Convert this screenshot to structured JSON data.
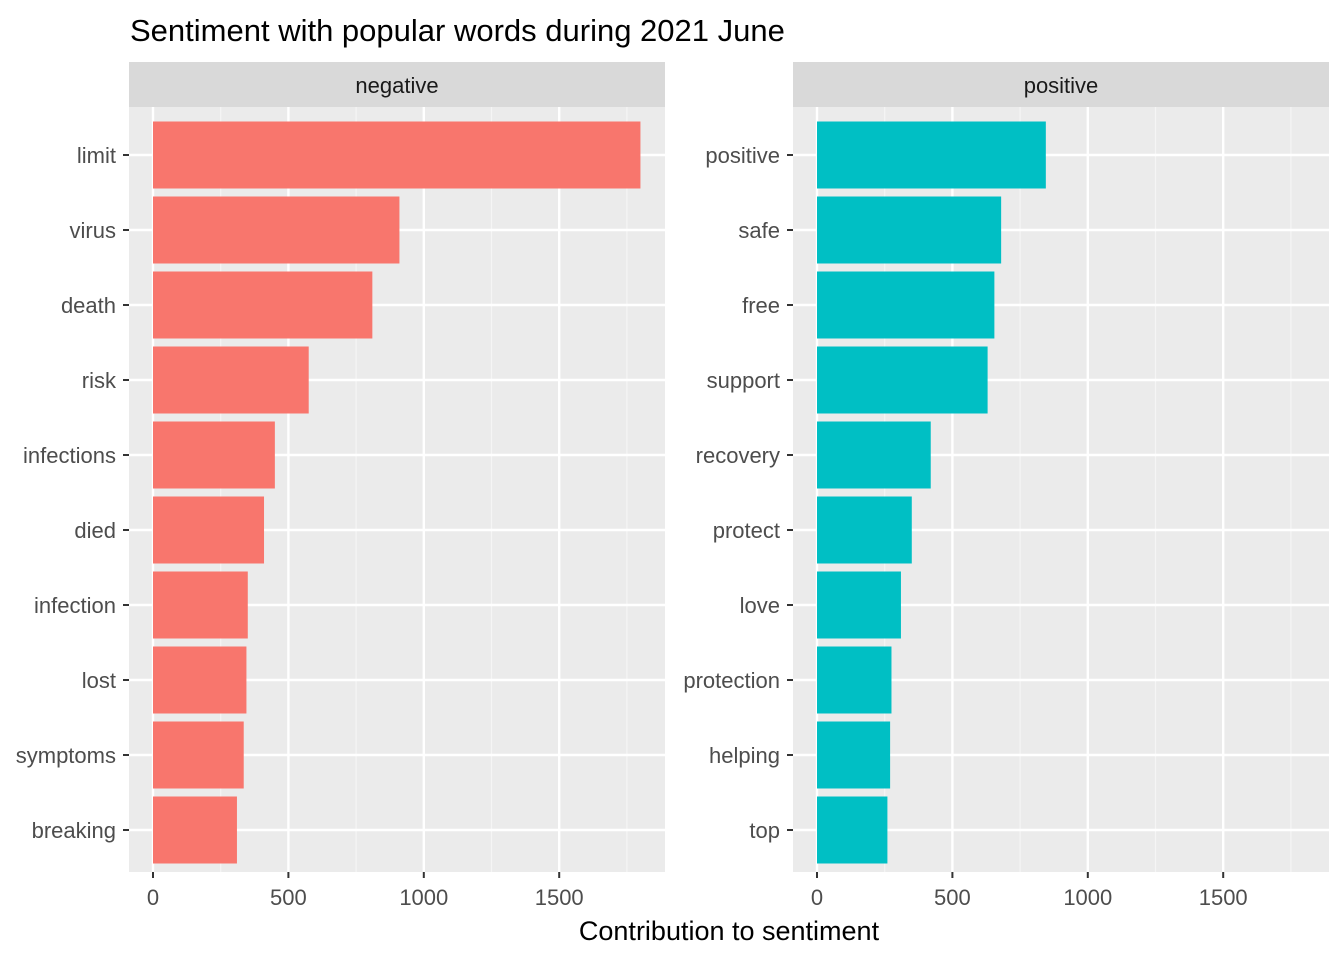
{
  "chart_data": {
    "type": "bar",
    "orientation": "horizontal",
    "title": "Sentiment with popular words during 2021 June",
    "xlabel": "Contribution to sentiment",
    "ylabel": "",
    "xlim": [
      0,
      1880
    ],
    "x_ticks": [
      0,
      500,
      1000,
      1500
    ],
    "grid": true,
    "legend": "none",
    "facets": [
      {
        "name": "negative",
        "color": "#F8766D",
        "categories": [
          "limit",
          "virus",
          "death",
          "risk",
          "infections",
          "died",
          "infection",
          "lost",
          "symptoms",
          "breaking"
        ],
        "values": [
          1800,
          910,
          810,
          575,
          450,
          410,
          350,
          345,
          335,
          310
        ]
      },
      {
        "name": "positive",
        "color": "#00BFC4",
        "categories": [
          "positive",
          "safe",
          "free",
          "support",
          "recovery",
          "protect",
          "love",
          "protection",
          "helping",
          "top"
        ],
        "values": [
          845,
          680,
          655,
          630,
          420,
          350,
          310,
          275,
          270,
          260
        ]
      }
    ]
  }
}
